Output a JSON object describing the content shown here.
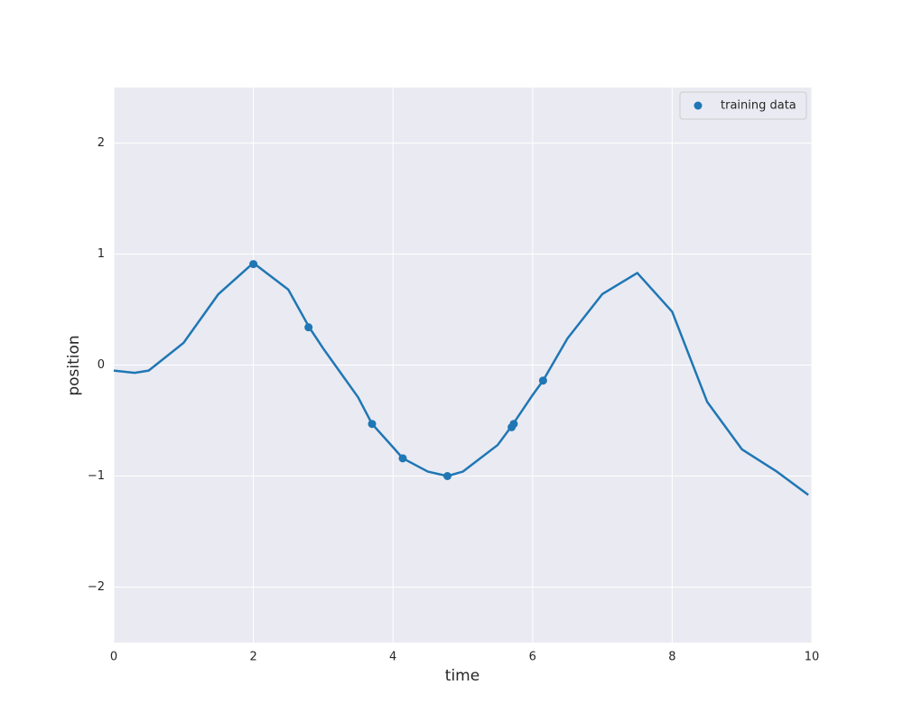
{
  "chart_data": {
    "type": "line",
    "xlabel": "time",
    "ylabel": "position",
    "xlim": [
      0,
      10
    ],
    "ylim": [
      -2.5,
      2.5
    ],
    "xticks": [
      0,
      2,
      4,
      6,
      8,
      10
    ],
    "yticks": [
      {
        "value": -2,
        "label": "−2"
      },
      {
        "value": -1,
        "label": "−1"
      },
      0,
      1,
      2
    ],
    "grid": true,
    "legend": "upper right",
    "series": [
      {
        "type": "line",
        "color": "#1f77b4",
        "x": [
          0,
          0.3,
          0.5,
          1,
          1.5,
          2,
          2.5,
          2.8,
          3,
          3.5,
          3.7,
          4,
          4.14,
          4.5,
          4.78,
          5,
          5.5,
          5.7,
          6,
          6.15,
          6.5,
          7,
          7.5,
          8,
          8.5,
          9,
          9.5,
          9.95
        ],
        "values": [
          -0.05,
          -0.07,
          -0.05,
          0.2,
          0.64,
          0.92,
          0.68,
          0.34,
          0.15,
          -0.29,
          -0.53,
          -0.74,
          -0.84,
          -0.96,
          -1.0,
          -0.96,
          -0.72,
          -0.55,
          -0.27,
          -0.14,
          0.24,
          0.64,
          0.83,
          0.48,
          -0.33,
          -0.76,
          -0.96,
          -1.17
        ]
      },
      {
        "type": "scatter",
        "name": "training data",
        "color": "#1f77b4",
        "x": [
          2.0,
          2.79,
          3.7,
          4.14,
          4.78,
          5.7,
          5.73,
          6.15
        ],
        "values": [
          0.91,
          0.34,
          -0.53,
          -0.84,
          -1.0,
          -0.56,
          -0.53,
          -0.14
        ]
      }
    ]
  }
}
